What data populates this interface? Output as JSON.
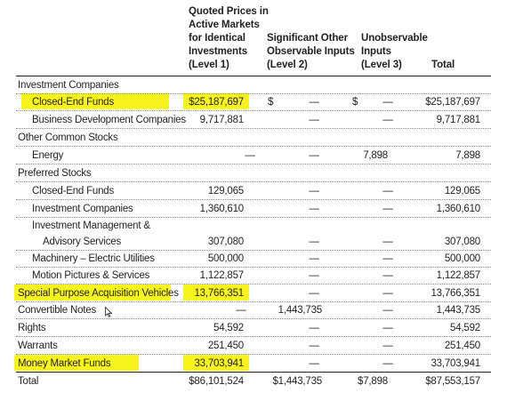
{
  "headers": {
    "level1": "Quoted Prices in\nActive Markets\nfor Identical\nInvestments\n(Level 1)",
    "level2": "Significant Other\nObservable Inputs\n(Level 2)",
    "level3": "Unobservable\nInputs\n(Level 3)",
    "total": "Total"
  },
  "dash": "—",
  "dollar": "$",
  "rows": [
    {
      "label": "Investment Companies"
    },
    {
      "label": "Closed-End Funds",
      "l1": "$25,187,697",
      "l2_cur": "$",
      "l3_cur": "$",
      "total": "$25,187,697"
    },
    {
      "label": "Business Development Companies",
      "l1": "9,717,881",
      "total": "9,717,881"
    },
    {
      "label": "Other Common Stocks"
    },
    {
      "label": "Energy",
      "l3": "7,898",
      "total": "7,898"
    },
    {
      "label": "Preferred Stocks"
    },
    {
      "label": "Closed-End Funds",
      "l1": "129,065",
      "total": "129,065"
    },
    {
      "label": "Investment Companies",
      "l1": "1,360,610",
      "total": "1,360,610"
    },
    {
      "label": "Investment Management &"
    },
    {
      "label": "Advisory Services",
      "l1": "307,080",
      "total": "307,080"
    },
    {
      "label": "Machinery – Electric Utilities",
      "l1": "500,000",
      "total": "500,000"
    },
    {
      "label": "Motion Pictures & Services",
      "l1": "1,122,857",
      "total": "1,122,857"
    },
    {
      "label": "Special Purpose Acquisition Vehicles",
      "l1": "13,766,351",
      "total": "13,766,351"
    },
    {
      "label": "Convertible Notes",
      "l2": "1,443,735",
      "total": "1,443,735"
    },
    {
      "label": "Rights",
      "l1": "54,592",
      "total": "54,592"
    },
    {
      "label": "Warrants",
      "l1": "251,450",
      "total": "251,450"
    },
    {
      "label": "Money Market Funds",
      "l1": "33,703,941",
      "total": "33,703,941"
    },
    {
      "label": "Total",
      "l1": "$86,101,524",
      "l2": "$1,443,735",
      "l3": "$7,898",
      "total": "$87,553,157"
    }
  ],
  "highlight_color": "#f7f31c"
}
